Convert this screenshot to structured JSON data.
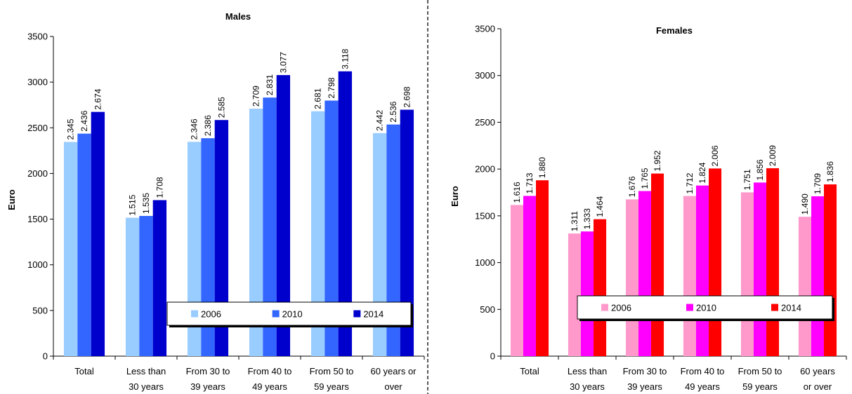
{
  "chart_data": [
    {
      "type": "bar",
      "title": "Males",
      "ylabel": "Euro",
      "xlabel": "",
      "ylim": [
        0,
        3500
      ],
      "yticks": [
        0,
        500,
        1000,
        1500,
        2000,
        2500,
        3000,
        3500
      ],
      "categories": [
        [
          "Total"
        ],
        [
          "Less than",
          "30 years"
        ],
        [
          "From 30 to",
          "39 years"
        ],
        [
          "From 40 to",
          "49 years"
        ],
        [
          "From 50 to",
          "59 years"
        ],
        [
          "60 years or",
          "over"
        ]
      ],
      "series": [
        {
          "name": "2006",
          "color": "#99CCFF",
          "values": [
            2345,
            1515,
            2346,
            2709,
            2681,
            2442
          ],
          "labels": [
            "2.345",
            "1.515",
            "2.346",
            "2.709",
            "2.681",
            "2.442"
          ]
        },
        {
          "name": "2010",
          "color": "#3366FF",
          "values": [
            2436,
            1535,
            2386,
            2831,
            2798,
            2536
          ],
          "labels": [
            "2.436",
            "1.535",
            "2.386",
            "2.831",
            "2.798",
            "2.536"
          ]
        },
        {
          "name": "2014",
          "color": "#0000CC",
          "values": [
            2674,
            1708,
            2585,
            3077,
            3118,
            2698
          ],
          "labels": [
            "2.674",
            "1.708",
            "2.585",
            "3.077",
            "3.118",
            "2.698"
          ]
        }
      ],
      "grid": false,
      "legend": "bottom-right inside plot"
    },
    {
      "type": "bar",
      "title": "Females",
      "ylabel": "Euro",
      "xlabel": "",
      "ylim": [
        0,
        3500
      ],
      "yticks": [
        0,
        500,
        1000,
        1500,
        2000,
        2500,
        3000,
        3500
      ],
      "categories": [
        [
          "Total"
        ],
        [
          "Less than",
          "30 years"
        ],
        [
          "From 30 to",
          "39 years"
        ],
        [
          "From 40 to",
          "49 years"
        ],
        [
          "From 50 to",
          "59 years"
        ],
        [
          "60 years",
          "or over"
        ]
      ],
      "series": [
        {
          "name": "2006",
          "color": "#FF99CC",
          "values": [
            1616,
            1311,
            1676,
            1712,
            1751,
            1490
          ],
          "labels": [
            "1.616",
            "1.311",
            "1.676",
            "1.712",
            "1.751",
            "1.490"
          ]
        },
        {
          "name": "2010",
          "color": "#FF00FF",
          "values": [
            1713,
            1333,
            1765,
            1824,
            1856,
            1709
          ],
          "labels": [
            "1.713",
            "1.333",
            "1.765",
            "1.824",
            "1.856",
            "1.709"
          ]
        },
        {
          "name": "2014",
          "color": "#FF0000",
          "values": [
            1880,
            1464,
            1952,
            2006,
            2009,
            1836
          ],
          "labels": [
            "1.880",
            "1.464",
            "1.952",
            "2.006",
            "2.009",
            "1.836"
          ]
        }
      ],
      "grid": false,
      "legend": "bottom-right inside plot"
    }
  ]
}
